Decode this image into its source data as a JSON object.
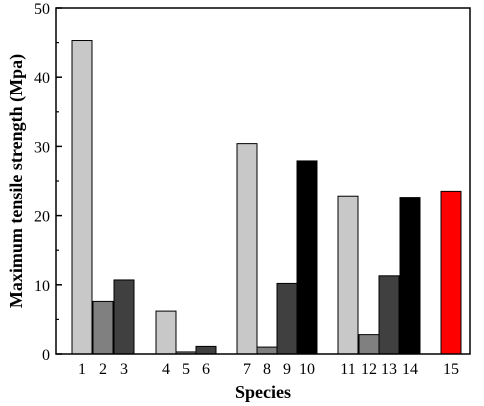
{
  "chart_data": {
    "type": "bar",
    "xlabel": "Species",
    "ylabel": "Maximum tensile strength (Mpa)",
    "ylim": [
      0,
      50
    ],
    "yticks": [
      "0",
      "10",
      "20",
      "30",
      "40",
      "50"
    ],
    "grid": false,
    "bars": [
      {
        "label": "1",
        "value": 45.3,
        "color": "#c8c8c8"
      },
      {
        "label": "2",
        "value": 7.6,
        "color": "#808080"
      },
      {
        "label": "3",
        "value": 10.7,
        "color": "#404040"
      },
      {
        "label": "4",
        "value": 6.2,
        "color": "#c8c8c8"
      },
      {
        "label": "5",
        "value": 0.3,
        "color": "#808080"
      },
      {
        "label": "6",
        "value": 1.1,
        "color": "#404040"
      },
      {
        "label": "7",
        "value": 30.4,
        "color": "#c8c8c8"
      },
      {
        "label": "8",
        "value": 1.0,
        "color": "#808080"
      },
      {
        "label": "9",
        "value": 10.2,
        "color": "#404040"
      },
      {
        "label": "10",
        "value": 27.9,
        "color": "#000000"
      },
      {
        "label": "11",
        "value": 22.8,
        "color": "#c8c8c8"
      },
      {
        "label": "12",
        "value": 2.8,
        "color": "#808080"
      },
      {
        "label": "13",
        "value": 11.3,
        "color": "#404040"
      },
      {
        "label": "14",
        "value": 22.6,
        "color": "#000000"
      },
      {
        "label": "15",
        "value": 23.5,
        "color": "#ff0000"
      }
    ]
  }
}
